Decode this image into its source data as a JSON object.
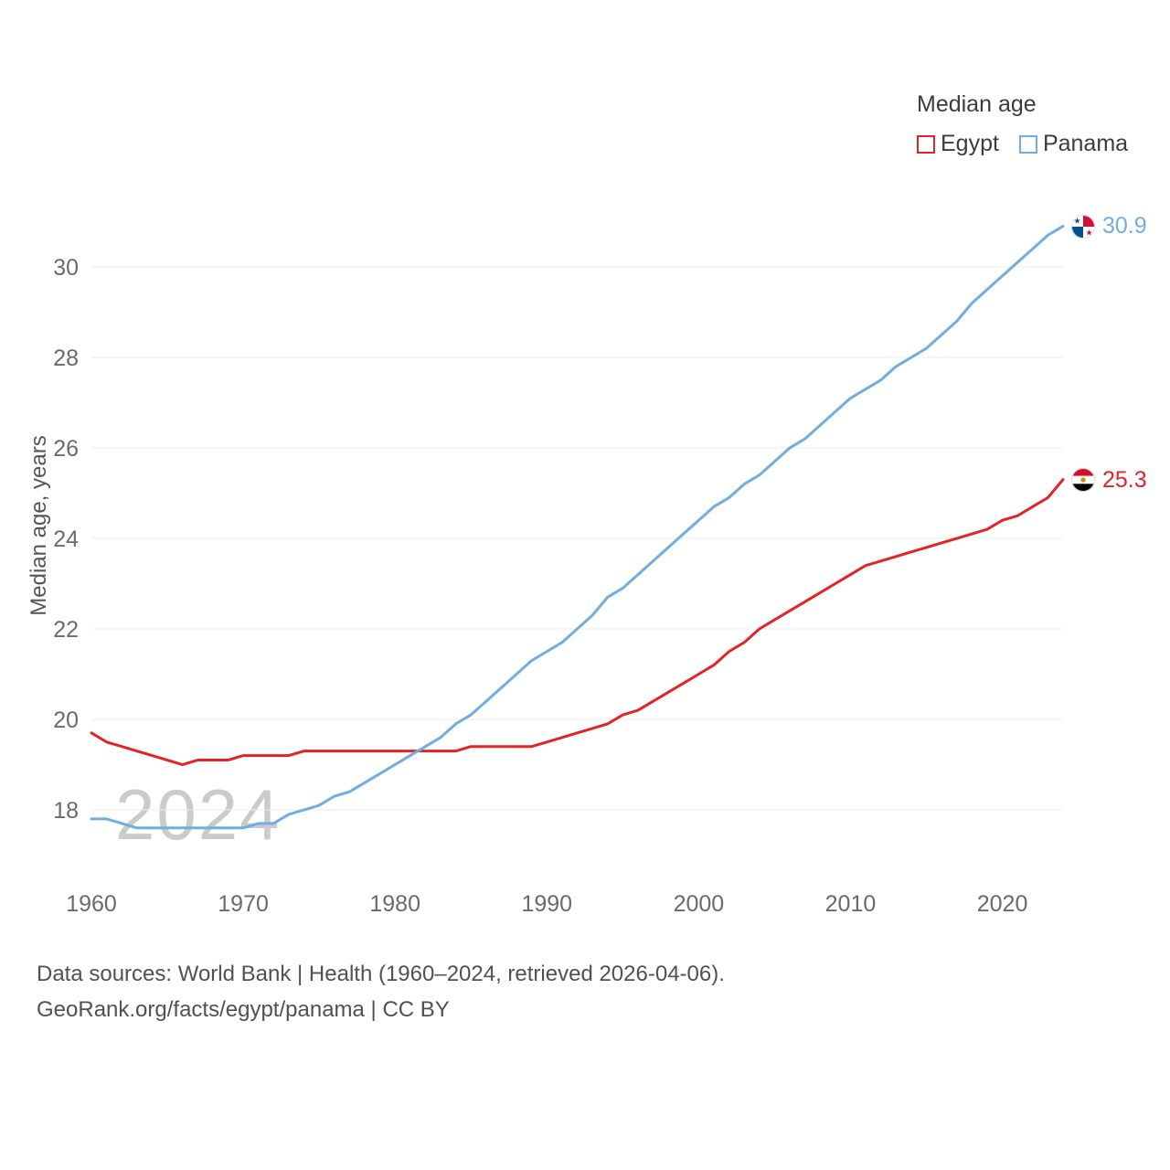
{
  "legend": {
    "title": "Median age",
    "series": [
      {
        "label": "Egypt",
        "color": "#e32427"
      },
      {
        "label": "Panama",
        "color": "#72ade2"
      }
    ]
  },
  "y_axis_label": "Median age, years",
  "watermark": "2024",
  "end_labels": [
    {
      "series": "Panama",
      "value": "30.9",
      "color": "#72ade2",
      "flag": "panama-flag"
    },
    {
      "series": "Egypt",
      "value": "25.3",
      "color": "#e32427",
      "flag": "egypt-flag"
    }
  ],
  "footer": {
    "line1": "Data sources: World Bank | Health (1960–2024, retrieved 2026-04-06).",
    "line2": "GeoRank.org/facts/egypt/panama | CC BY"
  },
  "chart_data": {
    "type": "line",
    "title": "Median age",
    "xlabel": "",
    "ylabel": "Median age, years",
    "xlim": [
      1960,
      2024
    ],
    "ylim": [
      17,
      31.5
    ],
    "xticks": [
      1960,
      1970,
      1980,
      1990,
      2000,
      2010,
      2020
    ],
    "yticks": [
      18,
      20,
      22,
      24,
      26,
      28,
      30
    ],
    "grid": "horizontal",
    "legend_position": "top-right",
    "x": [
      1960,
      1961,
      1962,
      1963,
      1964,
      1965,
      1966,
      1967,
      1968,
      1969,
      1970,
      1971,
      1972,
      1973,
      1974,
      1975,
      1976,
      1977,
      1978,
      1979,
      1980,
      1981,
      1982,
      1983,
      1984,
      1985,
      1986,
      1987,
      1988,
      1989,
      1990,
      1991,
      1992,
      1993,
      1994,
      1995,
      1996,
      1997,
      1998,
      1999,
      2000,
      2001,
      2002,
      2003,
      2004,
      2005,
      2006,
      2007,
      2008,
      2009,
      2010,
      2011,
      2012,
      2013,
      2014,
      2015,
      2016,
      2017,
      2018,
      2019,
      2020,
      2021,
      2022,
      2023,
      2024
    ],
    "series": [
      {
        "name": "Egypt",
        "color": "#e32427",
        "values": [
          19.7,
          19.5,
          19.4,
          19.3,
          19.2,
          19.1,
          19.0,
          19.1,
          19.1,
          19.1,
          19.2,
          19.2,
          19.2,
          19.2,
          19.3,
          19.3,
          19.3,
          19.3,
          19.3,
          19.3,
          19.3,
          19.3,
          19.3,
          19.3,
          19.3,
          19.4,
          19.4,
          19.4,
          19.4,
          19.4,
          19.5,
          19.6,
          19.7,
          19.8,
          19.9,
          20.1,
          20.2,
          20.4,
          20.6,
          20.8,
          21.0,
          21.2,
          21.5,
          21.7,
          22.0,
          22.2,
          22.4,
          22.6,
          22.8,
          23.0,
          23.2,
          23.4,
          23.5,
          23.6,
          23.7,
          23.8,
          23.9,
          24.0,
          24.1,
          24.2,
          24.4,
          24.5,
          24.7,
          24.9,
          25.3
        ]
      },
      {
        "name": "Panama",
        "color": "#72ade2",
        "values": [
          17.8,
          17.8,
          17.7,
          17.6,
          17.6,
          17.6,
          17.6,
          17.6,
          17.6,
          17.6,
          17.6,
          17.7,
          17.7,
          17.9,
          18.0,
          18.1,
          18.3,
          18.4,
          18.6,
          18.8,
          19.0,
          19.2,
          19.4,
          19.6,
          19.9,
          20.1,
          20.4,
          20.7,
          21.0,
          21.3,
          21.5,
          21.7,
          22.0,
          22.3,
          22.7,
          22.9,
          23.2,
          23.5,
          23.8,
          24.1,
          24.4,
          24.7,
          24.9,
          25.2,
          25.4,
          25.7,
          26.0,
          26.2,
          26.5,
          26.8,
          27.1,
          27.3,
          27.5,
          27.8,
          28.0,
          28.2,
          28.5,
          28.8,
          29.2,
          29.5,
          29.8,
          30.1,
          30.4,
          30.7,
          30.9
        ]
      }
    ]
  }
}
